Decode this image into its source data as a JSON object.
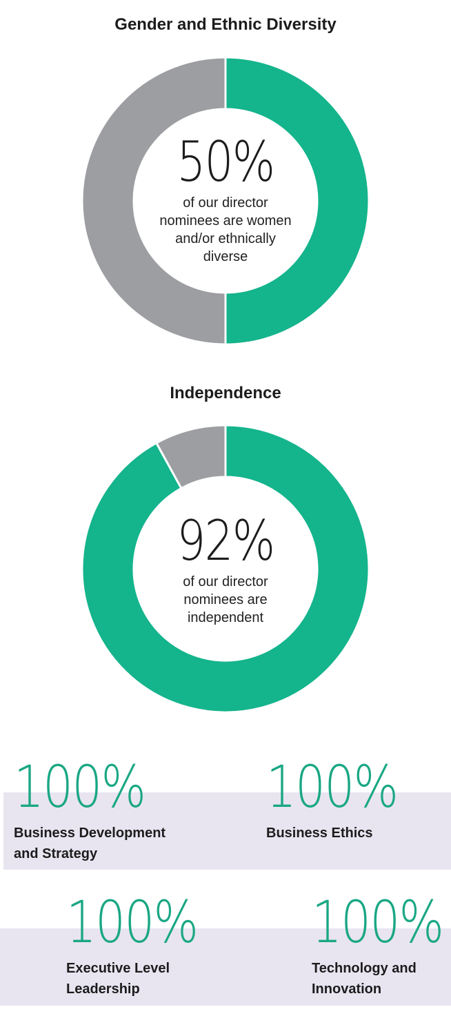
{
  "chart_data": [
    {
      "type": "pie",
      "title": "Gender and Ethnic Diversity",
      "slices": [
        {
          "name": "",
          "value": 50,
          "color": "#14b48c"
        },
        {
          "name": "",
          "value": 50,
          "color": "#9d9ea1"
        }
      ],
      "center_value": "50%",
      "center_caption": "of our director nominees are women and/or ethnically diverse"
    },
    {
      "type": "pie",
      "title": "Independence",
      "slices": [
        {
          "name": "",
          "value": 92,
          "color": "#14b48c"
        },
        {
          "name": "",
          "value": 8,
          "color": "#9d9ea1"
        }
      ],
      "center_value": "92%",
      "center_caption": "of our director nominees are independent"
    }
  ],
  "stats": [
    {
      "value": "100%",
      "label_lines": [
        "Business Development",
        "and Strategy"
      ]
    },
    {
      "value": "100%",
      "label_lines": [
        "Business Ethics"
      ]
    },
    {
      "value": "100%",
      "label_lines": [
        "Executive Level",
        "Leadership"
      ]
    },
    {
      "value": "100%",
      "label_lines": [
        "Technology and",
        "Innovation"
      ]
    }
  ],
  "colors": {
    "accent": "#14b48c",
    "neutral": "#9d9ea1",
    "band": "#e8e5f1"
  }
}
